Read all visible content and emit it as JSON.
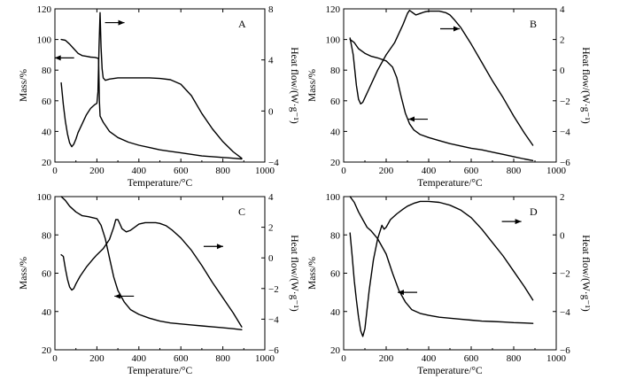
{
  "chart_data": [
    {
      "type": "line",
      "panel_label": "A",
      "xlabel": "Temperature/°C",
      "ylabel_left": "Mass/%",
      "ylabel_right": "Heat flow/(W·g⁻¹)",
      "xlim": [
        0,
        1000
      ],
      "ylim_left": [
        20,
        120
      ],
      "ylim_right": [
        -4,
        8
      ],
      "xticks": [
        0,
        200,
        400,
        600,
        800,
        1000
      ],
      "yticks_left": [
        20,
        40,
        60,
        80,
        100,
        120
      ],
      "yticks_right": [
        -4,
        0,
        4,
        8
      ],
      "series": [
        {
          "axis": "left",
          "x": [
            30,
            50,
            70,
            90,
            110,
            130,
            150,
            170,
            190,
            200,
            208,
            212,
            215,
            230,
            260,
            300,
            350,
            400,
            450,
            500,
            550,
            600,
            650,
            700,
            750,
            800,
            850,
            890
          ],
          "y": [
            100,
            99.5,
            97,
            94,
            91,
            89.5,
            89,
            88.5,
            88.3,
            88,
            87.5,
            60,
            50,
            46,
            40,
            36,
            33,
            31,
            29.5,
            28,
            27,
            26,
            25,
            24,
            23.5,
            23,
            22.5,
            22
          ]
        },
        {
          "axis": "right",
          "x": [
            30,
            40,
            50,
            60,
            70,
            80,
            90,
            100,
            110,
            130,
            150,
            170,
            190,
            200,
            205,
            210,
            215,
            220,
            225,
            230,
            240,
            260,
            300,
            350,
            400,
            450,
            500,
            550,
            600,
            650,
            700,
            750,
            800,
            850,
            890
          ],
          "y": [
            2.2,
            0.5,
            -0.8,
            -1.8,
            -2.5,
            -2.8,
            -2.6,
            -2.2,
            -1.7,
            -1,
            -0.3,
            0.2,
            0.5,
            0.6,
            1.5,
            5,
            7.7,
            5,
            3.3,
            2.6,
            2.4,
            2.5,
            2.6,
            2.6,
            2.6,
            2.6,
            2.55,
            2.45,
            2.1,
            1.2,
            -0.2,
            -1.4,
            -2.4,
            -3.2,
            -3.7
          ]
        }
      ],
      "annotations": [
        "←",
        "→"
      ]
    },
    {
      "type": "line",
      "panel_label": "B",
      "xlabel": "Temperature/°C",
      "ylabel_left": "Mass/%",
      "ylabel_right": "Heat flow/(W·g⁻¹)",
      "xlim": [
        0,
        1000
      ],
      "ylim_left": [
        20,
        120
      ],
      "ylim_right": [
        -6,
        4
      ],
      "xticks": [
        0,
        200,
        400,
        600,
        800,
        1000
      ],
      "yticks_left": [
        20,
        40,
        60,
        80,
        100,
        120
      ],
      "yticks_right": [
        -6,
        -4,
        -2,
        0,
        2,
        4
      ],
      "series": [
        {
          "axis": "left",
          "x": [
            30,
            50,
            70,
            100,
            130,
            160,
            200,
            230,
            250,
            270,
            290,
            310,
            330,
            360,
            400,
            450,
            500,
            550,
            600,
            650,
            700,
            750,
            800,
            850,
            890
          ],
          "y": [
            100,
            98,
            94,
            91,
            89,
            88,
            86,
            82,
            75,
            63,
            52,
            45,
            41,
            38,
            36,
            34,
            32,
            30.5,
            29,
            28,
            26.5,
            25,
            23.5,
            22,
            21
          ]
        },
        {
          "axis": "right",
          "x": [
            30,
            45,
            60,
            70,
            80,
            90,
            100,
            120,
            140,
            160,
            180,
            200,
            220,
            240,
            260,
            280,
            300,
            310,
            320,
            340,
            360,
            380,
            400,
            420,
            450,
            480,
            500,
            520,
            550,
            600,
            650,
            700,
            750,
            800,
            850,
            890
          ],
          "y": [
            2.1,
            1,
            -1,
            -1.9,
            -2.2,
            -2.1,
            -1.8,
            -1.2,
            -0.6,
            0,
            0.5,
            1,
            1.4,
            1.8,
            2.4,
            3,
            3.7,
            3.9,
            3.8,
            3.6,
            3.7,
            3.8,
            3.85,
            3.85,
            3.85,
            3.75,
            3.6,
            3.3,
            2.8,
            1.7,
            0.5,
            -0.7,
            -1.8,
            -3,
            -4.1,
            -4.9
          ]
        }
      ],
      "annotations": [
        "←",
        "→"
      ]
    },
    {
      "type": "line",
      "panel_label": "C",
      "xlabel": "Temperature/°C",
      "ylabel_left": "Mass/%",
      "ylabel_right": "Heat flow/(W·g⁻¹)",
      "xlim": [
        0,
        1000
      ],
      "ylim_left": [
        20,
        100
      ],
      "ylim_right": [
        -6,
        4
      ],
      "xticks": [
        0,
        200,
        400,
        600,
        800,
        1000
      ],
      "yticks_left": [
        20,
        40,
        60,
        80,
        100
      ],
      "yticks_right": [
        -6,
        -4,
        -2,
        0,
        2,
        4
      ],
      "series": [
        {
          "axis": "left",
          "x": [
            30,
            50,
            70,
            100,
            130,
            160,
            200,
            220,
            240,
            260,
            280,
            300,
            330,
            360,
            400,
            450,
            500,
            550,
            600,
            650,
            700,
            750,
            800,
            850,
            890
          ],
          "y": [
            100,
            98,
            95,
            92,
            90,
            89.5,
            88.5,
            85,
            78,
            68,
            58,
            51,
            45,
            41,
            38.5,
            36.5,
            35,
            34,
            33.5,
            33,
            32.5,
            32,
            31.5,
            31,
            30.5
          ]
        },
        {
          "axis": "right",
          "x": [
            30,
            40,
            50,
            60,
            70,
            80,
            90,
            100,
            120,
            150,
            180,
            200,
            230,
            260,
            280,
            290,
            300,
            310,
            320,
            340,
            360,
            380,
            400,
            430,
            460,
            480,
            500,
            530,
            560,
            600,
            650,
            700,
            750,
            800,
            850,
            890
          ],
          "y": [
            0.2,
            0.1,
            -0.7,
            -1.4,
            -1.9,
            -2.1,
            -2,
            -1.7,
            -1.2,
            -0.6,
            -0.1,
            0.2,
            0.6,
            1.2,
            2,
            2.5,
            2.5,
            2.2,
            1.9,
            1.7,
            1.8,
            2,
            2.2,
            2.3,
            2.3,
            2.3,
            2.25,
            2.1,
            1.8,
            1.3,
            0.5,
            -0.5,
            -1.6,
            -2.6,
            -3.6,
            -4.5
          ]
        }
      ],
      "annotations": [
        "←",
        "→"
      ]
    },
    {
      "type": "line",
      "panel_label": "D",
      "xlabel": "Temperature/°C",
      "ylabel_left": "Mass/%",
      "ylabel_right": "Heat flow/(W·g⁻¹)",
      "xlim": [
        0,
        1000
      ],
      "ylim_left": [
        20,
        100
      ],
      "ylim_right": [
        -6,
        2
      ],
      "xticks": [
        0,
        200,
        400,
        600,
        800,
        1000
      ],
      "yticks_left": [
        20,
        40,
        60,
        80,
        100
      ],
      "yticks_right": [
        -6,
        -4,
        -2,
        0,
        2
      ],
      "series": [
        {
          "axis": "left",
          "x": [
            30,
            50,
            70,
            90,
            110,
            130,
            160,
            200,
            230,
            260,
            290,
            320,
            360,
            400,
            450,
            500,
            550,
            600,
            650,
            700,
            750,
            800,
            850,
            890
          ],
          "y": [
            100,
            97,
            92,
            88,
            84,
            82,
            78,
            70,
            60,
            51,
            45,
            41,
            39,
            38,
            37,
            36.5,
            36,
            35.5,
            35,
            34.8,
            34.5,
            34.2,
            34,
            33.8
          ]
        },
        {
          "axis": "right",
          "x": [
            30,
            40,
            50,
            60,
            70,
            80,
            90,
            100,
            110,
            120,
            140,
            160,
            180,
            190,
            200,
            220,
            250,
            280,
            300,
            330,
            360,
            400,
            450,
            500,
            550,
            600,
            650,
            700,
            750,
            800,
            850,
            890
          ],
          "y": [
            0.1,
            -1.1,
            -2.4,
            -3.4,
            -4.3,
            -5,
            -5.3,
            -4.9,
            -3.9,
            -2.9,
            -1.3,
            -0.2,
            0.5,
            0.3,
            0.4,
            0.8,
            1.1,
            1.35,
            1.5,
            1.65,
            1.75,
            1.75,
            1.7,
            1.55,
            1.3,
            0.9,
            0.3,
            -0.4,
            -1.1,
            -1.9,
            -2.7,
            -3.4
          ]
        }
      ],
      "annotations": [
        "←",
        "→"
      ]
    }
  ]
}
